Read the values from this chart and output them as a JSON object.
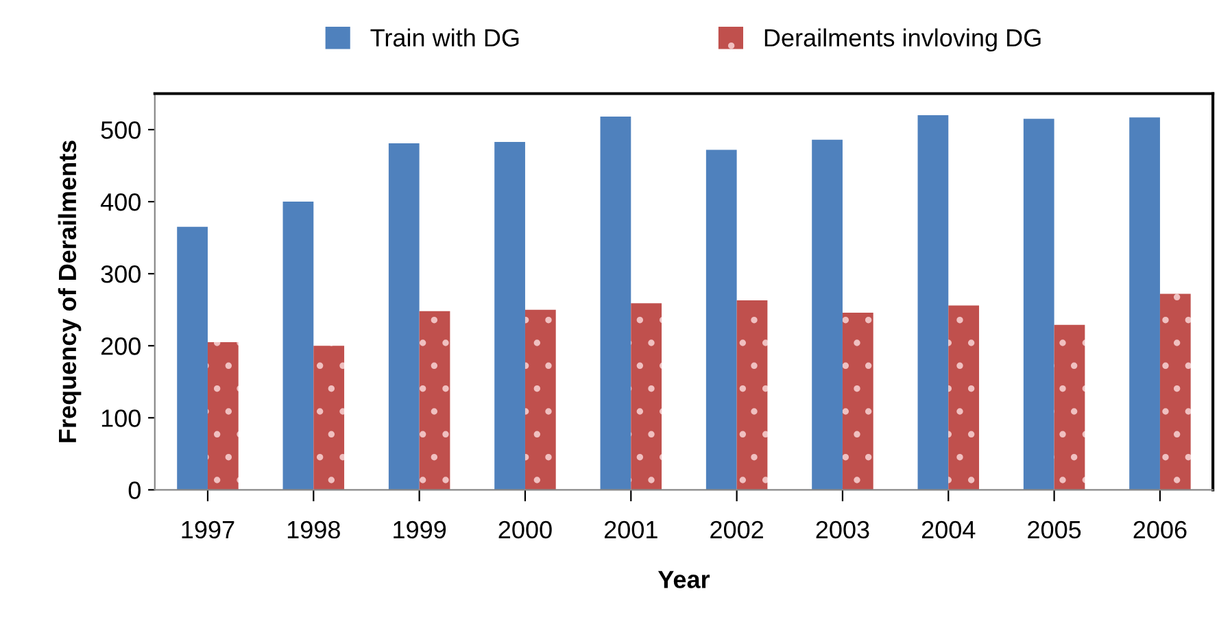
{
  "chart_data": {
    "type": "bar",
    "xlabel": "Year",
    "ylabel": "Frequency of Derailments",
    "categories": [
      "1997",
      "1998",
      "1999",
      "2000",
      "2001",
      "2002",
      "2003",
      "2004",
      "2005",
      "2006"
    ],
    "series": [
      {
        "name": "Train with DG",
        "color": "#4f81bd",
        "values": [
          365,
          400,
          481,
          483,
          518,
          472,
          486,
          520,
          515,
          517
        ]
      },
      {
        "name": "Derailments invloving DG",
        "color": "#c0504d",
        "values": [
          205,
          200,
          248,
          250,
          259,
          263,
          246,
          256,
          229,
          272
        ]
      }
    ],
    "ylim": [
      0,
      550
    ],
    "yticks": [
      0,
      100,
      200,
      300,
      400,
      500
    ],
    "grid": false,
    "legend": "top"
  }
}
